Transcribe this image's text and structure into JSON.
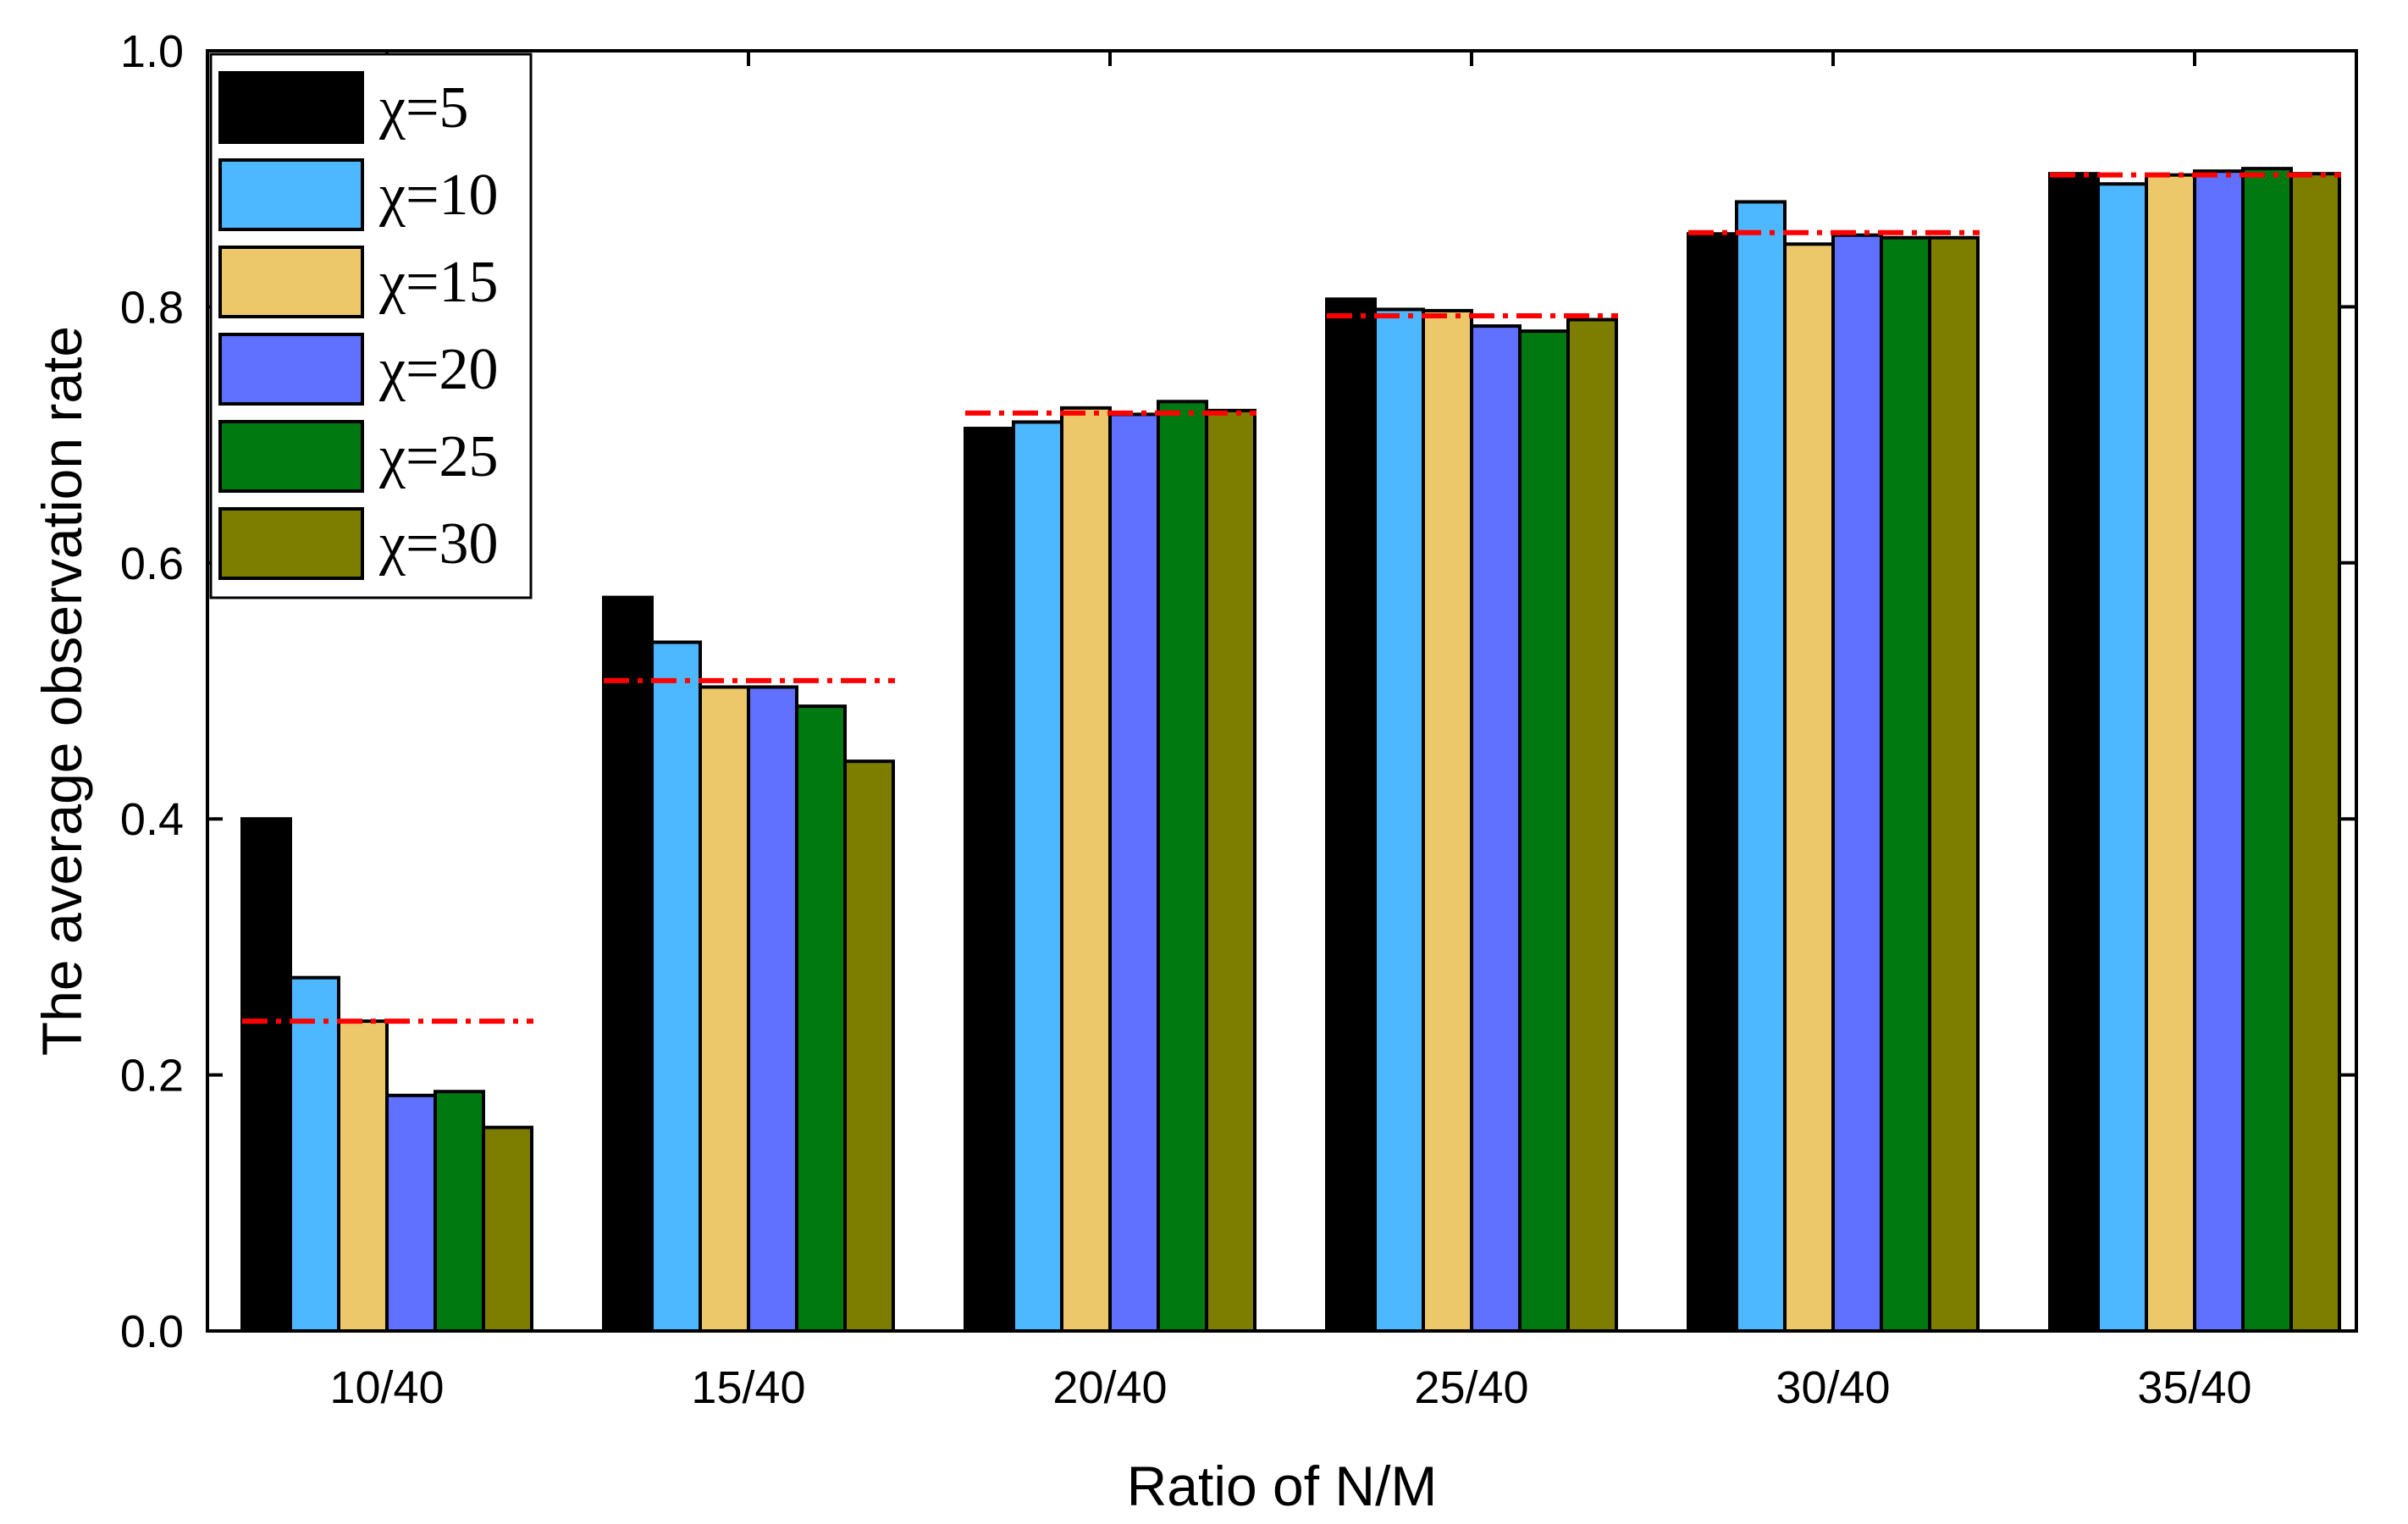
{
  "chart_data": {
    "type": "bar",
    "title": "",
    "xlabel": "Ratio of N/M",
    "ylabel": "The average observation rate",
    "categories": [
      "10/40",
      "15/40",
      "20/40",
      "25/40",
      "30/40",
      "35/40"
    ],
    "ylim": [
      0.0,
      1.0
    ],
    "yticks": [
      "0.0",
      "0.2",
      "0.4",
      "0.6",
      "0.8",
      "1.0"
    ],
    "grid": false,
    "legend_position": "top-left",
    "series": [
      {
        "name": "χ=5",
        "color": "#000000",
        "values": [
          0.4,
          0.573,
          0.705,
          0.806,
          0.857,
          0.904
        ]
      },
      {
        "name": "χ=10",
        "color": "#4DB8FF",
        "values": [
          0.276,
          0.538,
          0.71,
          0.798,
          0.882,
          0.896
        ]
      },
      {
        "name": "χ=15",
        "color": "#EDC86A",
        "values": [
          0.242,
          0.503,
          0.721,
          0.797,
          0.849,
          0.903
        ]
      },
      {
        "name": "χ=20",
        "color": "#6070FF",
        "values": [
          0.184,
          0.503,
          0.716,
          0.785,
          0.856,
          0.906
        ]
      },
      {
        "name": "χ=25",
        "color": "#007A10",
        "values": [
          0.187,
          0.488,
          0.726,
          0.781,
          0.854,
          0.908
        ]
      },
      {
        "name": "χ=30",
        "color": "#7D7D00",
        "values": [
          0.159,
          0.445,
          0.719,
          0.79,
          0.854,
          0.904
        ]
      }
    ],
    "reference_lines": {
      "style": "dash-dot",
      "color": "#FF0000",
      "values": [
        0.242,
        0.508,
        0.717,
        0.793,
        0.858,
        0.903
      ]
    }
  }
}
